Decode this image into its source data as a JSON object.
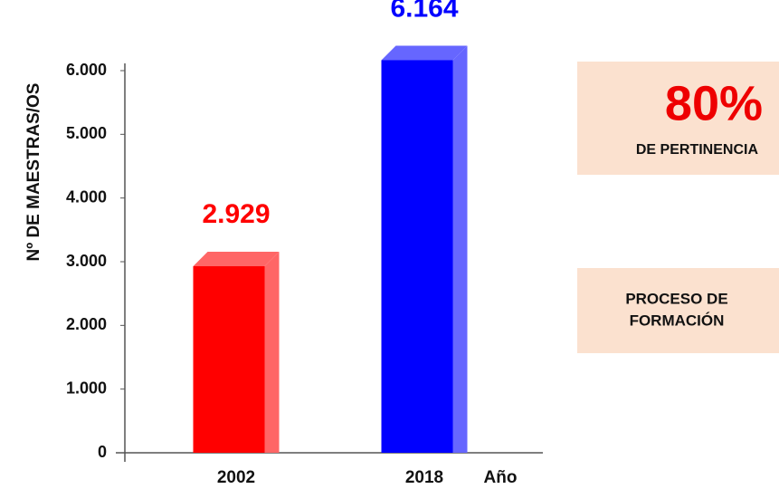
{
  "chart_data": {
    "type": "bar3d",
    "y_axis_label": "Nº DE MAESTRAS/OS",
    "x_axis_label": "Año",
    "categories": [
      "2002",
      "2018"
    ],
    "values": [
      2929,
      6164
    ],
    "value_labels": [
      "2.929",
      "6.164"
    ],
    "colors": [
      "#ff0000",
      "#0000ff"
    ],
    "side_colors": [
      "#ff6666",
      "#6666ff"
    ],
    "ylim": [
      0,
      6000
    ],
    "yticks": [
      0,
      {
        "value": 1000,
        "label": "1.000"
      },
      {
        "value": 2000,
        "label": "2.000"
      },
      {
        "value": 3000,
        "label": "3.000"
      },
      {
        "value": 4000,
        "label": "4.000"
      },
      {
        "value": 5000,
        "label": "5.000"
      },
      {
        "value": 6000,
        "label": "6.000"
      }
    ]
  },
  "panels": [
    {
      "big": "80%",
      "text": [
        "DE PERTINENCIA"
      ]
    },
    {
      "text": [
        "PROCESO DE",
        "FORMACIÓN"
      ]
    }
  ]
}
